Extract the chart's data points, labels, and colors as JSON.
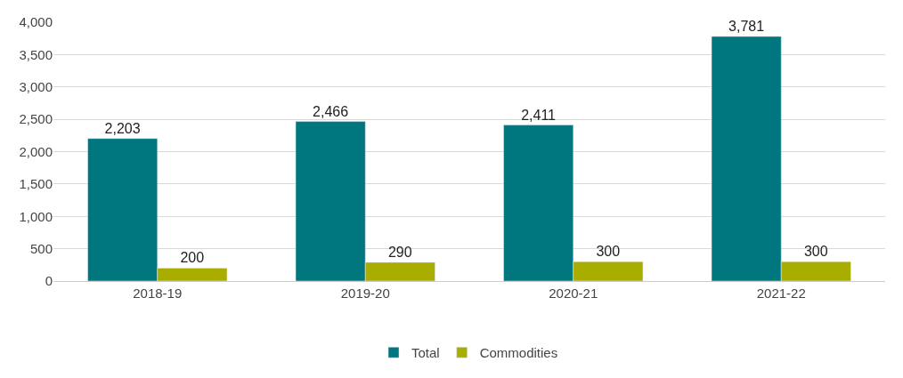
{
  "chart_data": {
    "type": "bar",
    "categories": [
      "2018-19",
      "2019-20",
      "2020-21",
      "2021-22"
    ],
    "series": [
      {
        "name": "Total",
        "color": "#00777f",
        "values": [
          2203,
          2466,
          2411,
          3781
        ],
        "value_labels": [
          "2,203",
          "2,466",
          "2,411",
          "3,781"
        ]
      },
      {
        "name": "Commodities",
        "color": "#a8ad00",
        "values": [
          200,
          290,
          300,
          300
        ],
        "value_labels": [
          "200",
          "290",
          "300",
          "300"
        ]
      }
    ],
    "ylim": [
      0,
      4000
    ],
    "yticks": [
      0,
      500,
      {
        "value": 1000,
        "label": "1,000"
      },
      {
        "value": 1500,
        "label": "1,500"
      },
      {
        "value": 2000,
        "label": "2,000"
      },
      {
        "value": 2500,
        "label": "2,500"
      },
      {
        "value": 3000,
        "label": "3,000"
      },
      {
        "value": 3500,
        "label": "3,500"
      },
      {
        "value": 4000,
        "label": "4,000"
      }
    ],
    "grid": "y",
    "legend": "bottom"
  }
}
